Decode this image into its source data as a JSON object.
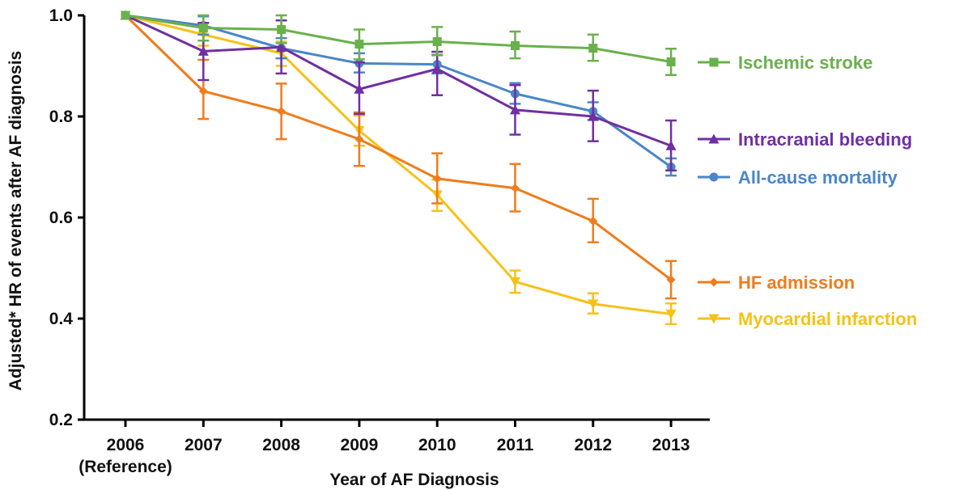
{
  "chart_data": {
    "type": "line",
    "xlabel": "Year of AF Diagnosis",
    "ylabel": "Adjusted* HR of events after AF diagnosis",
    "x": [
      "2006",
      "2007",
      "2008",
      "2009",
      "2010",
      "2011",
      "2012",
      "2013"
    ],
    "x_sublabels": [
      "(Reference)",
      "",
      "",
      "",
      "",
      "",
      "",
      ""
    ],
    "ylim": [
      0.2,
      1.0
    ],
    "yticks": [
      "0.2",
      "0.4",
      "0.6",
      "0.8",
      "1.0"
    ],
    "grid": false,
    "legend": "right",
    "series": [
      {
        "name": "Ischemic stroke",
        "color": "#6ab04c",
        "marker": "square",
        "values": [
          1.0,
          0.975,
          0.972,
          0.943,
          0.948,
          0.94,
          0.935,
          0.908
        ],
        "err_low": [
          1.0,
          0.95,
          0.945,
          0.913,
          0.921,
          0.915,
          0.91,
          0.882
        ],
        "err_high": [
          1.0,
          1.0,
          1.0,
          0.972,
          0.977,
          0.968,
          0.962,
          0.934
        ]
      },
      {
        "name": "Intracranial bleeding",
        "color": "#7030a0",
        "marker": "triangle-up",
        "values": [
          1.0,
          0.929,
          0.937,
          0.854,
          0.894,
          0.813,
          0.8,
          0.742
        ],
        "err_low": [
          1.0,
          0.872,
          0.885,
          0.805,
          0.842,
          0.764,
          0.751,
          0.693
        ],
        "err_high": [
          1.0,
          0.985,
          0.99,
          0.907,
          0.928,
          0.862,
          0.851,
          0.792
        ]
      },
      {
        "name": "All-cause mortality",
        "color": "#4a86c8",
        "marker": "circle",
        "values": [
          1.0,
          0.98,
          0.935,
          0.905,
          0.903,
          0.845,
          0.81,
          0.7
        ],
        "err_low": [
          1.0,
          0.962,
          0.915,
          0.887,
          0.885,
          0.825,
          0.793,
          0.683
        ],
        "err_high": [
          1.0,
          0.998,
          0.955,
          0.925,
          0.922,
          0.866,
          0.828,
          0.717
        ]
      },
      {
        "name": "HF admission",
        "color": "#f07c1c",
        "marker": "diamond",
        "values": [
          1.0,
          0.85,
          0.81,
          0.755,
          0.677,
          0.658,
          0.593,
          0.477
        ],
        "err_low": [
          1.0,
          0.795,
          0.755,
          0.702,
          0.628,
          0.612,
          0.551,
          0.44
        ],
        "err_high": [
          1.0,
          0.912,
          0.865,
          0.808,
          0.727,
          0.706,
          0.637,
          0.514
        ]
      },
      {
        "name": "Myocardial infarction",
        "color": "#f5c219",
        "marker": "triangle-down",
        "values": [
          1.0,
          0.962,
          0.925,
          0.772,
          0.645,
          0.473,
          0.429,
          0.409
        ],
        "err_low": [
          1.0,
          0.94,
          0.9,
          0.742,
          0.613,
          0.451,
          0.41,
          0.389
        ],
        "err_high": [
          1.0,
          0.985,
          0.948,
          0.802,
          0.675,
          0.495,
          0.45,
          0.43
        ]
      }
    ]
  }
}
